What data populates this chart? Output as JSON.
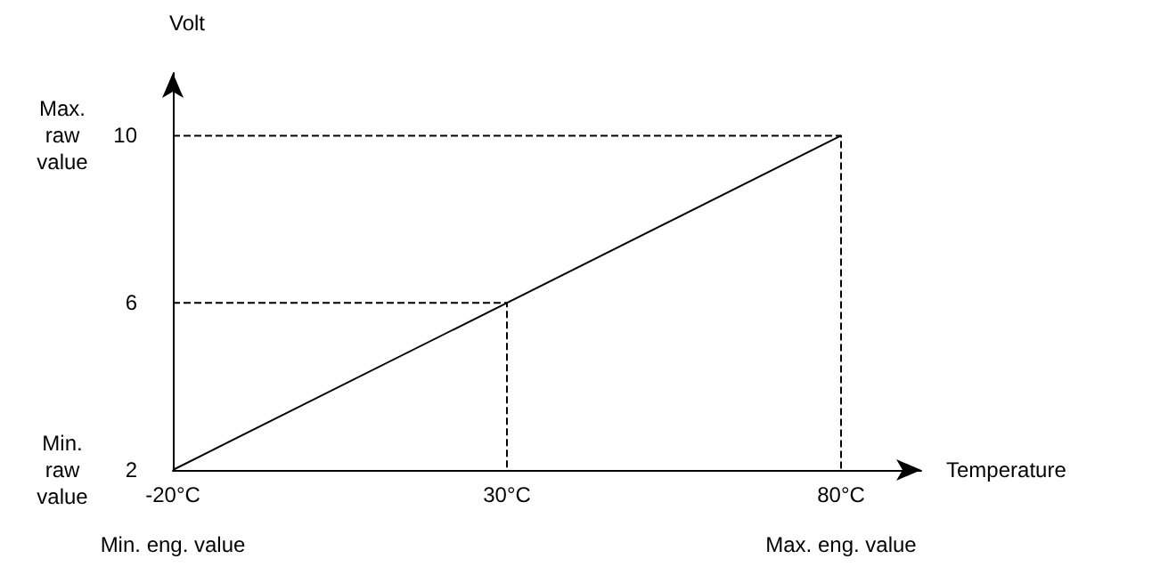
{
  "chart_data": {
    "type": "line",
    "xlabel": "Temperature",
    "ylabel": "Volt",
    "xlim": [
      -20,
      92
    ],
    "ylim": [
      2,
      11.5
    ],
    "xticks": [
      {
        "value": -20,
        "label": "-20°C"
      },
      {
        "value": 30,
        "label": "30°C"
      },
      {
        "value": 80,
        "label": "80°C"
      }
    ],
    "yticks": [
      2,
      6,
      10
    ],
    "grid": false,
    "marker": "none",
    "series": [
      {
        "x": [
          -20,
          80
        ],
        "values": [
          2,
          10
        ],
        "color": "#000000",
        "line_style": "solid"
      },
      {
        "x": [
          -20,
          80,
          80
        ],
        "values": [
          10,
          10,
          2
        ],
        "color": "#000000",
        "line_style": "dashed"
      },
      {
        "x": [
          -20,
          30,
          30
        ],
        "values": [
          6,
          6,
          2
        ],
        "color": "#000000",
        "line_style": "dashed"
      }
    ],
    "annotations": [
      "Max. raw value",
      "Min. raw value",
      "Min. eng. value",
      "Max. eng. value"
    ]
  }
}
